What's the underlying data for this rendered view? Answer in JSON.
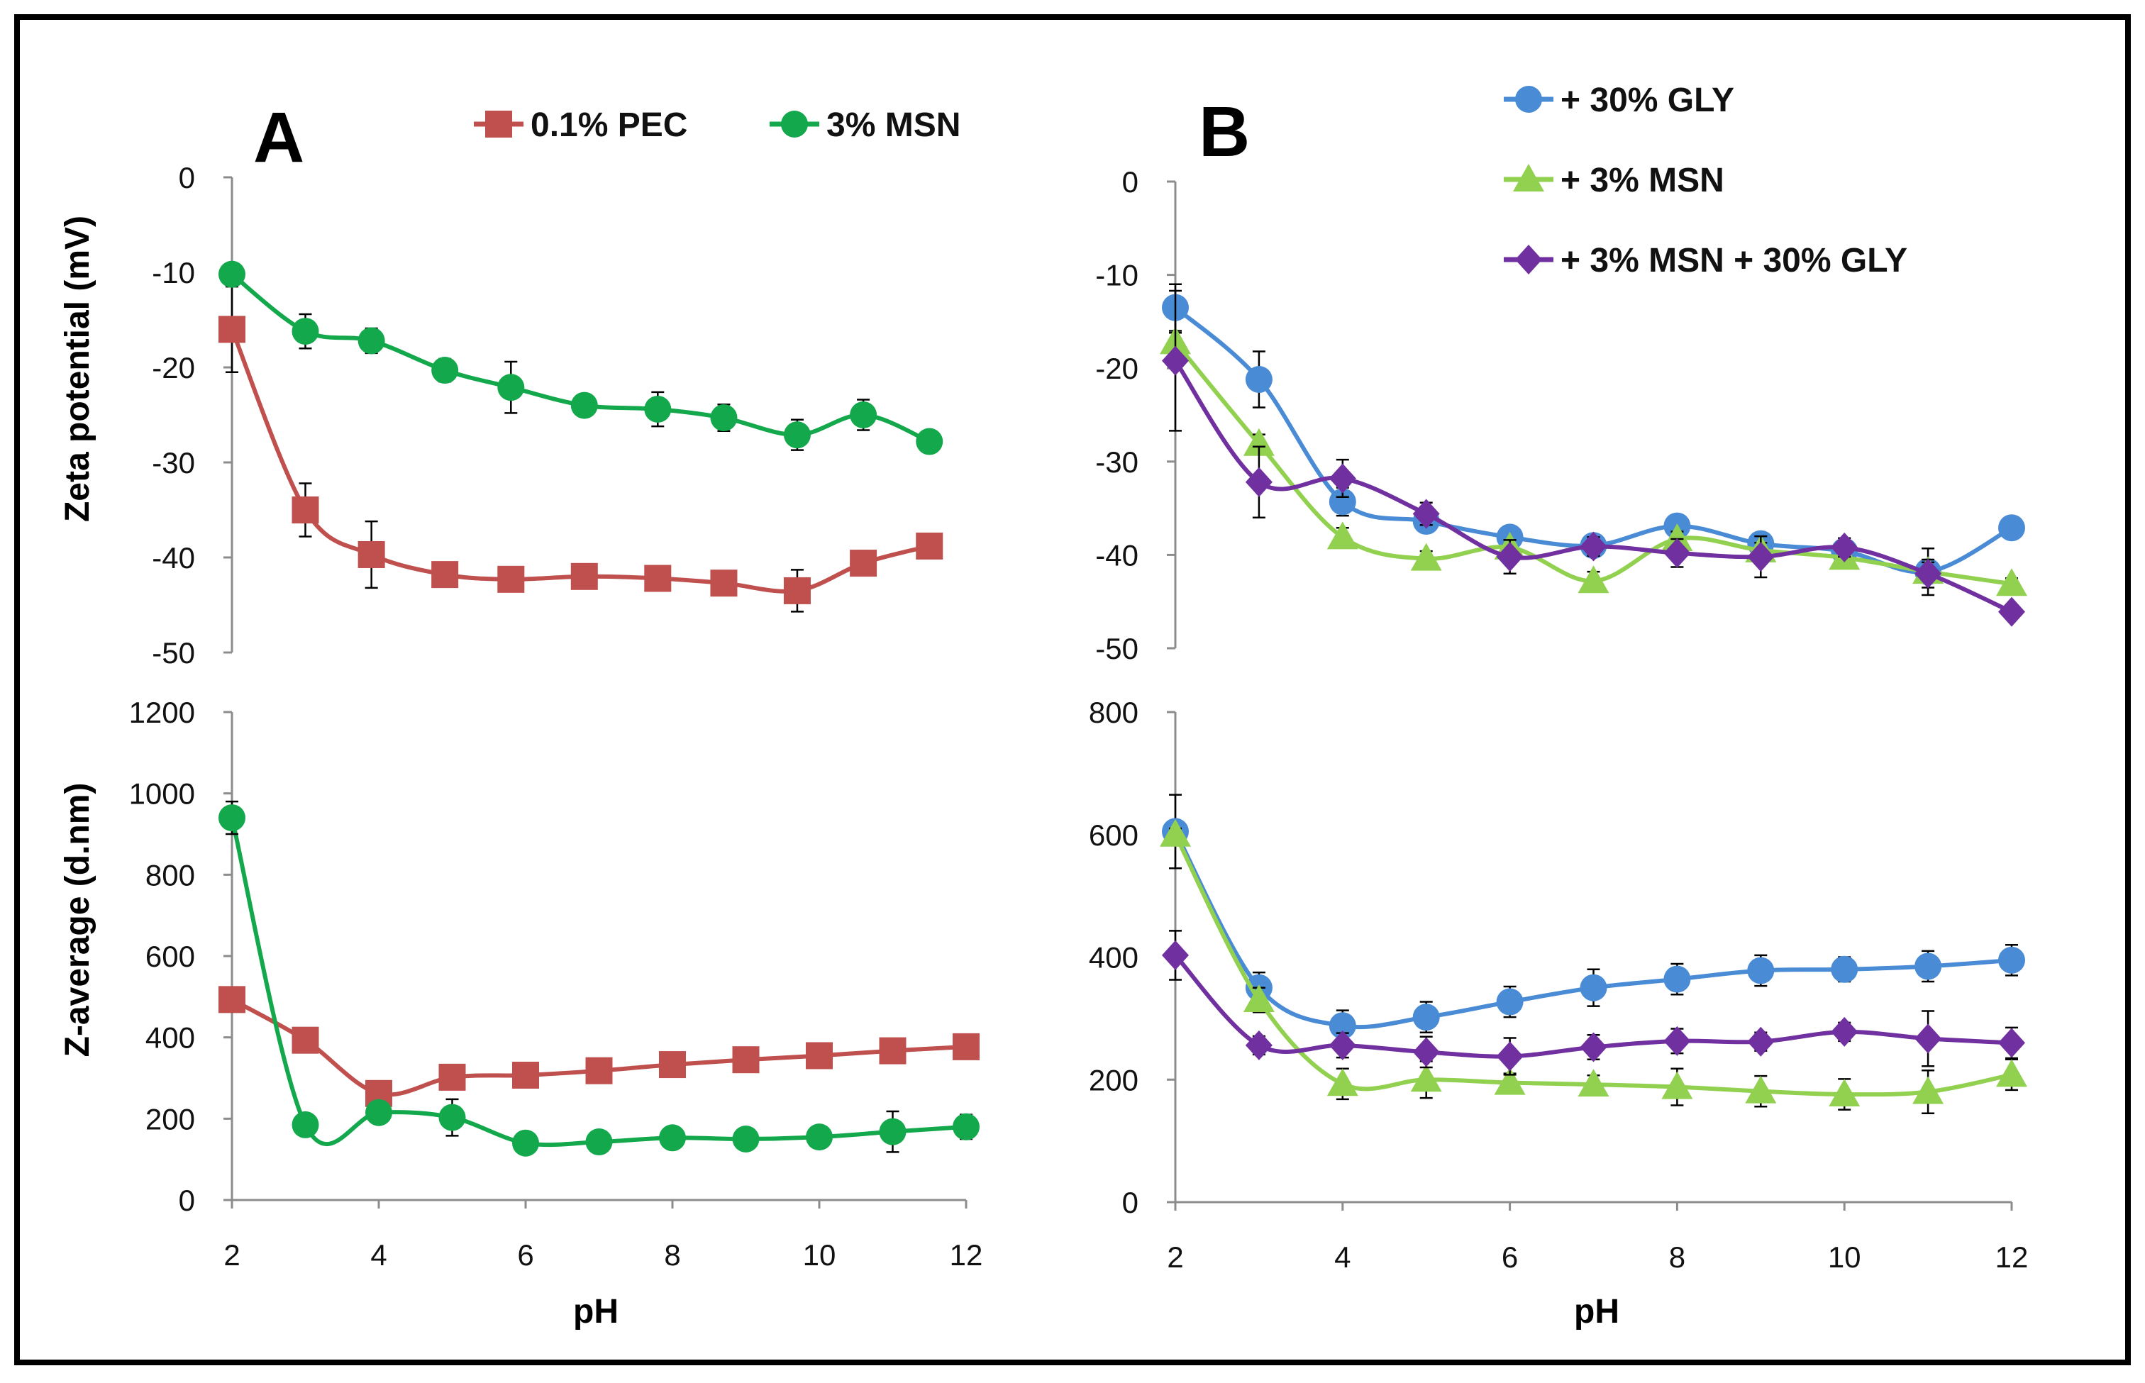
{
  "figure": {
    "panel_labels": [
      "A",
      "B"
    ]
  },
  "legend": {
    "A": [
      {
        "label": "0.1% PEC",
        "color": "#c0504d",
        "marker": "square"
      },
      {
        "label": "3% MSN",
        "color": "#13a84b",
        "marker": "circle"
      }
    ],
    "B": [
      {
        "label": "+ 30% GLY",
        "color": "#4a8bd6",
        "marker": "circle"
      },
      {
        "label": "+ 3%  MSN",
        "color": "#92d050",
        "marker": "triangle"
      },
      {
        "label": "+ 3% MSN  + 30% GLY",
        "color": "#7030a0",
        "marker": "diamond"
      }
    ]
  },
  "chart_data": [
    {
      "id": "A-zeta",
      "type": "line",
      "panel": "A",
      "title": "",
      "xlabel": "",
      "ylabel": "Zeta potential (mV)",
      "xlim": [
        2,
        12
      ],
      "ylim": [
        -50,
        0
      ],
      "yticks": [
        0,
        -10,
        -20,
        -30,
        -40,
        -50
      ],
      "xticks": [],
      "series": [
        {
          "name": "0.1% PEC",
          "color": "#c0504d",
          "marker": "square",
          "x": [
            2,
            3,
            3.9,
            4.9,
            5.8,
            6.8,
            7.8,
            8.7,
            9.7,
            10.6,
            11.5
          ],
          "y": [
            -16,
            -35,
            -39.7,
            -41.8,
            -42.3,
            -42,
            -42.2,
            -42.7,
            -43.5,
            -40.6,
            -38.8
          ],
          "err": [
            4.5,
            2.8,
            3.5,
            0.8,
            0.8,
            0.8,
            0.8,
            1.2,
            2.2,
            1.3,
            0.5
          ]
        },
        {
          "name": "3% MSN",
          "color": "#13a84b",
          "marker": "circle",
          "x": [
            2,
            3,
            3.9,
            4.9,
            5.8,
            6.8,
            7.8,
            8.7,
            9.7,
            10.6,
            11.5
          ],
          "y": [
            -10.2,
            -16.2,
            -17.2,
            -20.3,
            -22.1,
            -24,
            -24.4,
            -25.3,
            -27.1,
            -25,
            -27.8
          ],
          "err": [
            0.5,
            1.8,
            1.3,
            1.2,
            2.7,
            1,
            1.8,
            1.4,
            1.6,
            1.6,
            0.5
          ]
        }
      ]
    },
    {
      "id": "A-zavg",
      "type": "line",
      "panel": "A",
      "title": "",
      "xlabel": "pH",
      "ylabel": "Z-average (d.nm)",
      "xlim": [
        2,
        12
      ],
      "ylim": [
        0,
        1200
      ],
      "yticks": [
        0,
        200,
        400,
        600,
        800,
        1000,
        1200
      ],
      "xticks": [
        2,
        4,
        6,
        8,
        10,
        12
      ],
      "series": [
        {
          "name": "0.1% PEC",
          "color": "#c0504d",
          "marker": "square",
          "x": [
            2,
            3,
            4,
            5,
            6,
            7,
            8,
            9,
            10,
            11,
            12
          ],
          "y": [
            493,
            393,
            262,
            302,
            307,
            318,
            333,
            345,
            355,
            367,
            377
          ],
          "err": [
            8,
            8,
            20,
            10,
            10,
            10,
            10,
            10,
            10,
            10,
            10
          ]
        },
        {
          "name": "3% MSN",
          "color": "#13a84b",
          "marker": "circle",
          "x": [
            2,
            3,
            4,
            5,
            6,
            7,
            8,
            9,
            10,
            11,
            12
          ],
          "y": [
            940,
            185,
            215,
            203,
            140,
            143,
            153,
            150,
            155,
            168,
            180
          ],
          "err": [
            40,
            10,
            15,
            45,
            20,
            10,
            10,
            10,
            15,
            50,
            30
          ]
        }
      ]
    },
    {
      "id": "B-zeta",
      "type": "line",
      "panel": "B",
      "title": "",
      "xlabel": "",
      "ylabel": "",
      "xlim": [
        2,
        12
      ],
      "ylim": [
        -50,
        0
      ],
      "yticks": [
        0,
        -10,
        -20,
        -30,
        -40,
        -50
      ],
      "xticks": [],
      "series": [
        {
          "name": "+ 30% GLY",
          "color": "#4a8bd6",
          "marker": "circle",
          "x": [
            2,
            3,
            4,
            5,
            6,
            7,
            8,
            9,
            10,
            11,
            12
          ],
          "y": [
            -13.5,
            -21.2,
            -34.3,
            -36.4,
            -38.1,
            -39,
            -36.9,
            -38.8,
            -39.6,
            -41.8,
            -37.1
          ],
          "err": [
            2.5,
            3,
            1.5,
            1,
            1,
            0.8,
            1,
            1,
            1,
            2.5,
            0.6
          ]
        },
        {
          "name": "+ 3%  MSN",
          "color": "#92d050",
          "marker": "triangle",
          "x": [
            2,
            3,
            4,
            5,
            6,
            7,
            8,
            9,
            10,
            11,
            12
          ],
          "y": [
            -17.2,
            -28.1,
            -38.1,
            -40.4,
            -39.2,
            -42.8,
            -38.3,
            -39.5,
            -40.3,
            -41.8,
            -43.1
          ],
          "err": [
            1,
            1,
            1,
            0.8,
            0.8,
            1,
            0.8,
            0.8,
            0.8,
            1,
            0.6
          ]
        },
        {
          "name": "+ 3% MSN  + 30% GLY",
          "color": "#7030a0",
          "marker": "diamond",
          "x": [
            2,
            3,
            4,
            5,
            6,
            7,
            8,
            9,
            10,
            11,
            12
          ],
          "y": [
            -19.2,
            -32.2,
            -31.8,
            -35.6,
            -40.2,
            -39.1,
            -39.8,
            -40.2,
            -39.2,
            -42,
            -46.1
          ],
          "err": [
            7.5,
            3.8,
            2,
            1.2,
            1.8,
            1,
            1.5,
            2.2,
            1,
            1.5,
            0.5
          ]
        }
      ]
    },
    {
      "id": "B-zavg",
      "type": "line",
      "panel": "B",
      "title": "",
      "xlabel": "pH",
      "ylabel": "",
      "xlim": [
        2,
        12
      ],
      "ylim": [
        0,
        800
      ],
      "yticks": [
        0,
        200,
        400,
        600,
        800
      ],
      "xticks": [
        2,
        4,
        6,
        8,
        10,
        12
      ],
      "series": [
        {
          "name": "+ 30% GLY",
          "color": "#4a8bd6",
          "marker": "circle",
          "x": [
            2,
            3,
            4,
            5,
            6,
            7,
            8,
            9,
            10,
            11,
            12
          ],
          "y": [
            605,
            350,
            288,
            302,
            327,
            350,
            364,
            378,
            380,
            385,
            395
          ],
          "err": [
            60,
            25,
            25,
            25,
            25,
            30,
            25,
            25,
            20,
            25,
            25
          ]
        },
        {
          "name": "+ 3%  MSN",
          "color": "#92d050",
          "marker": "triangle",
          "x": [
            2,
            3,
            4,
            5,
            6,
            7,
            8,
            9,
            10,
            11,
            12
          ],
          "y": [
            600,
            330,
            193,
            200,
            195,
            192,
            188,
            181,
            176,
            180,
            208
          ],
          "err": [
            10,
            20,
            25,
            30,
            15,
            15,
            30,
            25,
            25,
            35,
            25
          ]
        },
        {
          "name": "+ 3% MSN  + 30% GLY",
          "color": "#7030a0",
          "marker": "diamond",
          "x": [
            2,
            3,
            4,
            5,
            6,
            7,
            8,
            9,
            10,
            11,
            12
          ],
          "y": [
            403,
            256,
            256,
            245,
            238,
            253,
            263,
            262,
            278,
            267,
            260
          ],
          "err": [
            40,
            15,
            20,
            25,
            30,
            20,
            20,
            15,
            15,
            45,
            25
          ]
        }
      ]
    }
  ]
}
